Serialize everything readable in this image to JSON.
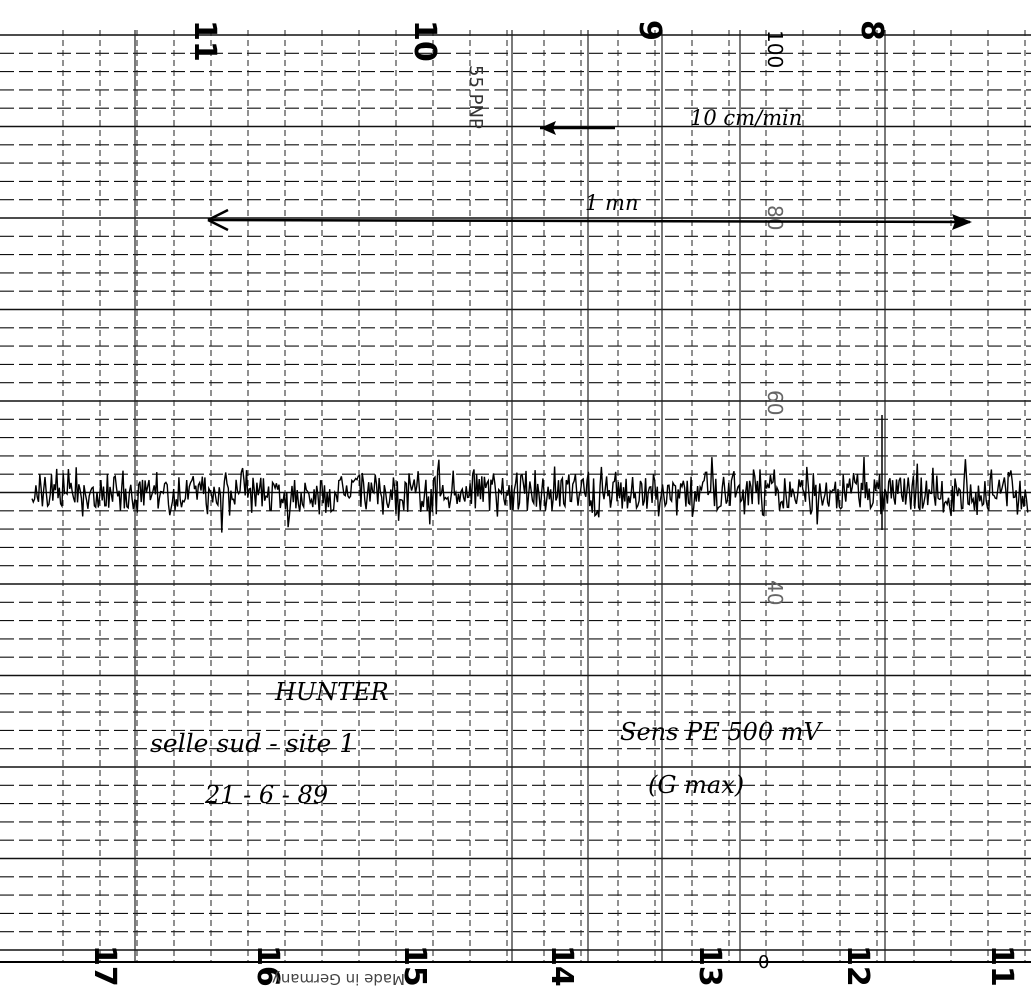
{
  "chart_paper": {
    "top_numbers": [
      "11",
      "10",
      "9",
      "8"
    ],
    "bottom_numbers": [
      "17",
      "16",
      "15",
      "14",
      "13",
      "12",
      "11"
    ],
    "scale_labels": [
      "100",
      "80",
      "60",
      "40",
      "0"
    ],
    "printer_mark": "55 PNP",
    "maker_text": "Made in Germany"
  },
  "annotations": {
    "speed": "10 cm/min",
    "time_span": "1 mn",
    "sample_name": "HUNTER",
    "site": "selle sud - site 1",
    "date": "21 - 6 - 89",
    "sensitivity": "Sens PE   500 mV",
    "gain": "(G max)"
  },
  "trace": {
    "description_color": "#000000",
    "baseline_level_percent": 50
  }
}
